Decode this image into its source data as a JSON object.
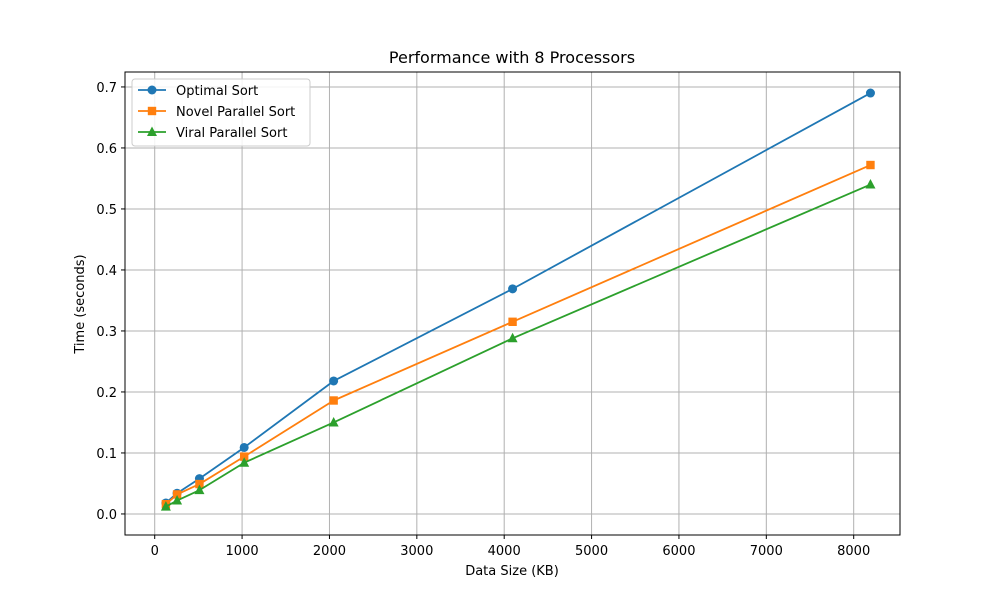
{
  "chart_data": {
    "type": "line",
    "title": "Performance with 8 Processors",
    "xlabel": "Data Size (KB)",
    "ylabel": "Time (seconds)",
    "xlim": [
      -340,
      8530
    ],
    "ylim": [
      -0.0345,
      0.7245
    ],
    "xticks": [
      0,
      1000,
      2000,
      3000,
      4000,
      5000,
      6000,
      7000,
      8000
    ],
    "yticks": [
      0.0,
      0.1,
      0.2,
      0.3,
      0.4,
      0.5,
      0.6,
      0.7
    ],
    "ytick_labels": [
      "0.0",
      "0.1",
      "0.2",
      "0.3",
      "0.4",
      "0.5",
      "0.6",
      "0.7"
    ],
    "grid": true,
    "legend_position": "top-left",
    "x": [
      128,
      256,
      512,
      1024,
      2048,
      4096,
      8192
    ],
    "series": [
      {
        "name": "Optimal Sort",
        "marker": "circle",
        "color": "#1f77b4",
        "values": [
          0.018,
          0.034,
          0.058,
          0.109,
          0.218,
          0.369,
          0.69
        ]
      },
      {
        "name": "Novel Parallel Sort",
        "marker": "square",
        "color": "#ff7f0e",
        "values": [
          0.016,
          0.032,
          0.049,
          0.094,
          0.186,
          0.315,
          0.572
        ]
      },
      {
        "name": "Viral Parallel Sort",
        "marker": "triangle",
        "color": "#2ca02c",
        "values": [
          0.012,
          0.022,
          0.039,
          0.084,
          0.15,
          0.288,
          0.54
        ]
      }
    ]
  }
}
